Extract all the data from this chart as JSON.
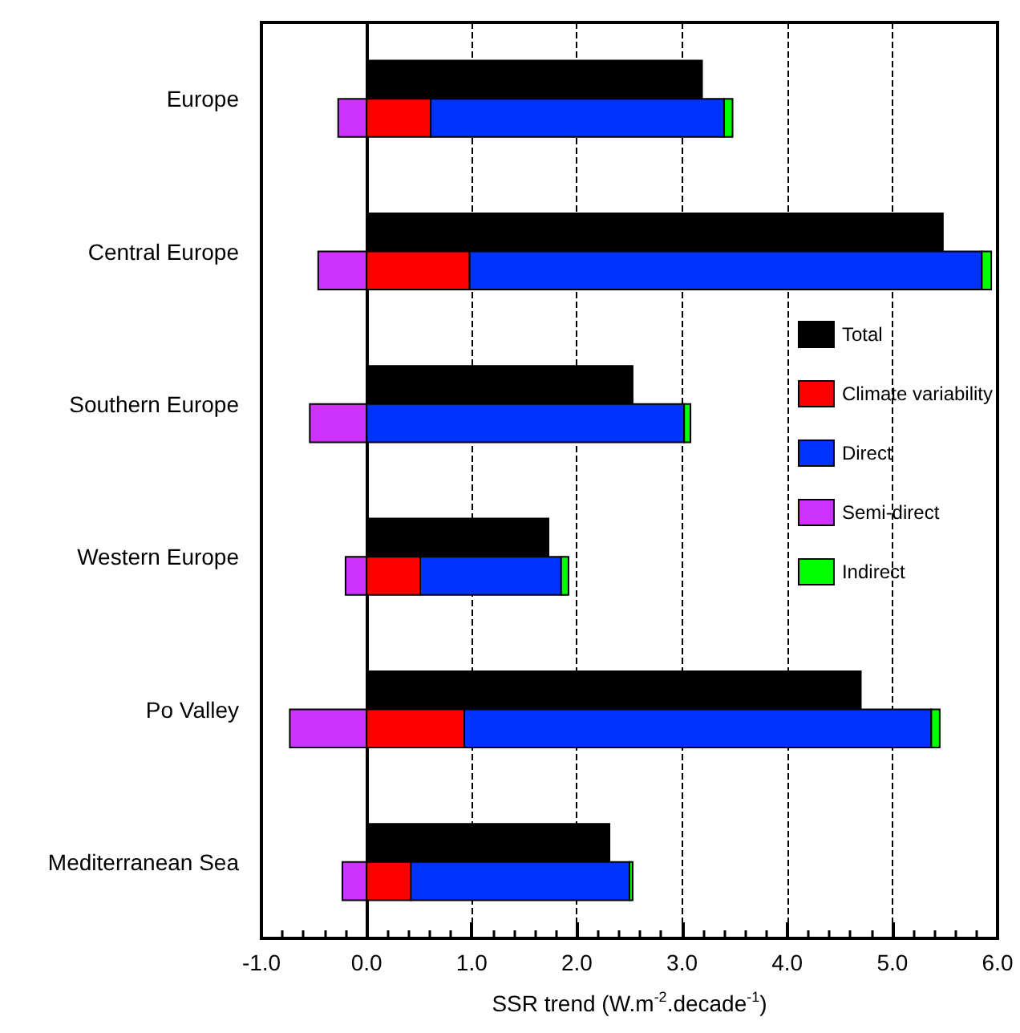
{
  "chart_data": {
    "type": "bar",
    "orientation": "horizontal",
    "xlabel": "SSR trend (W.m$^{-2}$.decade$^{-1}$)",
    "categories": [
      "Europe",
      "Central Europe",
      "Southern Europe",
      "Western Europe",
      "Po Valley",
      "Mediterranean Sea"
    ],
    "series": [
      {
        "name": "Total",
        "color": "#000000",
        "values": [
          3.19,
          5.48,
          2.53,
          1.73,
          4.7,
          2.31
        ]
      },
      {
        "name": "Climate variability",
        "color": "#ff0000",
        "values": [
          0.61,
          0.98,
          null,
          0.51,
          0.93,
          0.42
        ],
        "base": [
          0,
          0,
          null,
          0,
          0,
          0
        ]
      },
      {
        "name": "Direct",
        "color": "#0033ff",
        "values": [
          2.79,
          4.87,
          3.02,
          1.34,
          4.44,
          2.08
        ],
        "base": [
          0.61,
          0.98,
          0,
          0.51,
          0.93,
          0.42
        ]
      },
      {
        "name": "Semi-direct",
        "color": "#cc33ff",
        "values": [
          -0.27,
          -0.46,
          -0.54,
          -0.2,
          -0.73,
          -0.23
        ],
        "base": [
          0,
          0,
          0,
          0,
          0,
          0
        ]
      },
      {
        "name": "Indirect",
        "color": "#00ff00",
        "values": [
          0.08,
          0.09,
          0.06,
          0.07,
          0.08,
          0.03
        ],
        "base": [
          3.4,
          5.85,
          3.02,
          1.85,
          5.37,
          2.5
        ]
      }
    ],
    "xlim": [
      -1,
      6
    ],
    "xticks": [
      {
        "value": -1,
        "label": "-1.0"
      },
      {
        "value": 0,
        "label": "0.0"
      },
      {
        "value": 1,
        "label": "1.0"
      },
      {
        "value": 2,
        "label": "2.0"
      },
      {
        "value": 3,
        "label": "3.0"
      },
      {
        "value": 4,
        "label": "4.0"
      },
      {
        "value": 5,
        "label": "5.0"
      },
      {
        "value": 6,
        "label": "6.0"
      }
    ],
    "grid": "x",
    "legend": "right",
    "ref_lines": [
      {
        "axis": "x",
        "value": 0,
        "color": "#000000",
        "line_style": "solid"
      }
    ]
  }
}
